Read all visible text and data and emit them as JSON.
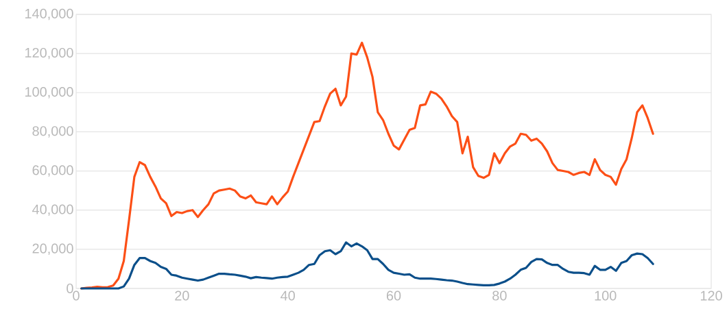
{
  "chart_data": {
    "type": "line",
    "x": [
      1,
      2,
      3,
      4,
      5,
      6,
      7,
      8,
      9,
      10,
      11,
      12,
      13,
      14,
      15,
      16,
      17,
      18,
      19,
      20,
      21,
      22,
      23,
      24,
      25,
      26,
      27,
      28,
      29,
      30,
      31,
      32,
      33,
      34,
      35,
      36,
      37,
      38,
      39,
      40,
      41,
      42,
      43,
      44,
      45,
      46,
      47,
      48,
      49,
      50,
      51,
      52,
      53,
      54,
      55,
      56,
      57,
      58,
      59,
      60,
      61,
      62,
      63,
      64,
      65,
      66,
      67,
      68,
      69,
      70,
      71,
      72,
      73,
      74,
      75,
      76,
      77,
      78,
      79,
      80,
      81,
      82,
      83,
      84,
      85,
      86,
      87,
      88,
      89,
      90,
      91,
      92,
      93,
      94,
      95,
      96,
      97,
      98,
      99,
      100,
      101,
      102,
      103,
      104,
      105,
      106,
      107,
      108,
      109
    ],
    "series": [
      {
        "color": "#fc4f16",
        "values": [
          0,
          300,
          500,
          800,
          600,
          700,
          1500,
          5000,
          14000,
          35000,
          57000,
          64500,
          63000,
          57000,
          52000,
          46000,
          43500,
          37000,
          39000,
          38500,
          39500,
          40000,
          36500,
          40000,
          43000,
          48500,
          50000,
          50500,
          51000,
          50000,
          47000,
          46000,
          47500,
          44000,
          43500,
          43000,
          47000,
          43000,
          46500,
          49500,
          57000,
          64000,
          71000,
          78000,
          85000,
          85500,
          93000,
          99500,
          102000,
          93500,
          98000,
          120000,
          119500,
          125500,
          118000,
          108000,
          90000,
          86000,
          79000,
          73000,
          71000,
          76000,
          81000,
          82000,
          93500,
          94000,
          100500,
          99500,
          97000,
          93000,
          88000,
          85000,
          69000,
          77500,
          62000,
          57500,
          56500,
          58000,
          69000,
          64000,
          69000,
          72500,
          74000,
          79000,
          78500,
          75500,
          76500,
          74000,
          70000,
          64000,
          60500,
          60000,
          59500,
          58000,
          59000,
          59500,
          58000,
          66000,
          60500,
          58000,
          57000,
          53000,
          61000,
          66000,
          77000,
          90000,
          93500,
          87000,
          79000
        ]
      },
      {
        "color": "#0b4f8a",
        "values": [
          0,
          0,
          0,
          0,
          0,
          0,
          0,
          0,
          1000,
          5000,
          12000,
          15500,
          15500,
          14000,
          13000,
          11000,
          10000,
          7000,
          6500,
          5500,
          5000,
          4500,
          4000,
          4500,
          5500,
          6500,
          7500,
          7500,
          7200,
          7000,
          6500,
          6000,
          5200,
          5800,
          5500,
          5300,
          5000,
          5500,
          5800,
          6000,
          7000,
          8000,
          9500,
          12000,
          12500,
          17000,
          19000,
          19500,
          17500,
          19000,
          23500,
          21500,
          23000,
          21500,
          19500,
          15000,
          15000,
          12500,
          9500,
          8000,
          7500,
          7000,
          7200,
          5500,
          5000,
          5000,
          5000,
          4800,
          4500,
          4200,
          4000,
          3500,
          2800,
          2200,
          2000,
          1800,
          1600,
          1600,
          1800,
          2500,
          3500,
          5000,
          7000,
          9500,
          10500,
          13500,
          15000,
          14800,
          13000,
          12000,
          12000,
          10000,
          8500,
          8000,
          8000,
          7800,
          7000,
          11500,
          9500,
          9500,
          11000,
          9000,
          13000,
          14000,
          17000,
          17800,
          17500,
          15500,
          12500
        ]
      }
    ],
    "xlim": [
      0,
      120
    ],
    "xticks": [
      0,
      20,
      40,
      60,
      80,
      100,
      120
    ],
    "ylim": [
      0,
      140000
    ],
    "yticks": [
      {
        "value": 0,
        "label": "0"
      },
      {
        "value": 20000,
        "label": "20,000"
      },
      {
        "value": 40000,
        "label": "40,000"
      },
      {
        "value": 60000,
        "label": "60,000"
      },
      {
        "value": 80000,
        "label": "80,000"
      },
      {
        "value": 100000,
        "label": "100,000"
      },
      {
        "value": 120000,
        "label": "120,000"
      },
      {
        "value": 140000,
        "label": "140,000"
      }
    ],
    "grid": "y",
    "marker": "none",
    "line_style": "solid"
  }
}
